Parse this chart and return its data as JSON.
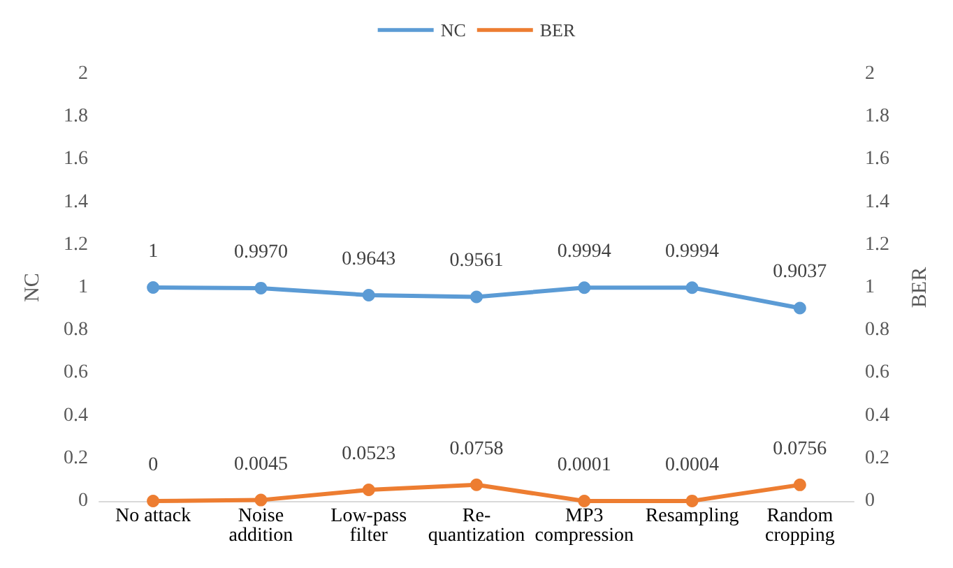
{
  "chart_data": {
    "type": "line",
    "ylabel": "NC",
    "y2label": "BER",
    "categories": [
      "No attack",
      "Noise addition",
      "Low-pass filter",
      "Re-quantization",
      "MP3 compression",
      "Resampling",
      "Random cropping"
    ],
    "series": [
      {
        "name": "NC",
        "color": "#5b9bd5",
        "values": [
          1,
          0.997,
          0.9643,
          0.9561,
          0.9994,
          0.9994,
          0.9037
        ],
        "value_labels": [
          "1",
          "0.9970",
          "0.9643",
          "0.9561",
          "0.9994",
          "0.9994",
          "0.9037"
        ]
      },
      {
        "name": "BER",
        "color": "#ed7d31",
        "axis": "y2",
        "values": [
          0,
          0.0045,
          0.0523,
          0.0758,
          0.0001,
          0.0004,
          0.0756
        ],
        "value_labels": [
          "0",
          "0.0045",
          "0.0523",
          "0.0758",
          "0.0001",
          "0.0004",
          "0.0756"
        ]
      }
    ],
    "ylim": [
      0,
      2
    ],
    "yticks": [
      0,
      0.2,
      0.4,
      0.6,
      0.8,
      1,
      1.2,
      1.4,
      1.6,
      1.8,
      2
    ],
    "y2lim": [
      0,
      2
    ],
    "y2ticks": [
      0,
      0.2,
      0.4,
      0.6,
      0.8,
      1,
      1.2,
      1.4,
      1.6,
      1.8,
      2
    ],
    "legend": "top",
    "grid": false,
    "marker": "circle",
    "line_style": "solid"
  }
}
